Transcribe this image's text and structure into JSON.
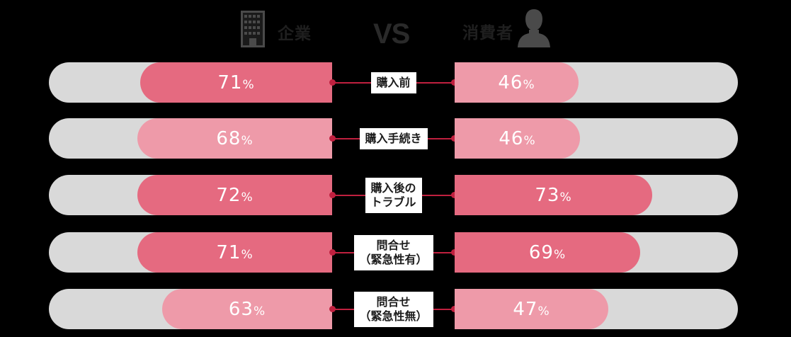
{
  "header": {
    "left_label": "企業",
    "left_icon": "building-icon",
    "vs_label": "VS",
    "right_label": "消費者",
    "right_icon": "person-icon"
  },
  "colors": {
    "strong": "#e56a80",
    "light": "#ee9aa9",
    "track": "#d9d9d9",
    "connector": "#c0203f"
  },
  "rows": [
    {
      "label": "購入前",
      "company": 71,
      "consumer": 46,
      "company_text": "71",
      "consumer_text": "46",
      "company_tone": "strong",
      "consumer_tone": "light",
      "company_fill": 271,
      "consumer_fill": 175
    },
    {
      "label": "購入手続き",
      "company": 68,
      "consumer": 46,
      "company_text": "68",
      "consumer_text": "46",
      "company_tone": "light",
      "consumer_tone": "light",
      "company_fill": 275,
      "consumer_fill": 177
    },
    {
      "label": "購入後の\nトラブル",
      "company": 72,
      "consumer": 73,
      "company_text": "72",
      "consumer_text": "73",
      "company_tone": "strong",
      "consumer_tone": "strong",
      "company_fill": 275,
      "consumer_fill": 279
    },
    {
      "label": "問合せ\n（緊急性有）",
      "company": 71,
      "consumer": 69,
      "company_text": "71",
      "consumer_text": "69",
      "company_tone": "strong",
      "consumer_tone": "strong",
      "company_fill": 275,
      "consumer_fill": 262
    },
    {
      "label": "問合せ\n（緊急性無）",
      "company": 63,
      "consumer": 47,
      "company_text": "63",
      "consumer_text": "47",
      "company_tone": "light",
      "consumer_tone": "light",
      "company_fill": 240,
      "consumer_fill": 217
    }
  ],
  "percent_symbol": "%",
  "chart_data": {
    "type": "bar",
    "title": "企業 VS 消費者",
    "orientation": "horizontal-diverging",
    "categories": [
      "購入前",
      "購入手続き",
      "購入後のトラブル",
      "問合せ（緊急性有）",
      "問合せ（緊急性無）"
    ],
    "series": [
      {
        "name": "企業",
        "values": [
          71,
          68,
          72,
          71,
          63
        ]
      },
      {
        "name": "消費者",
        "values": [
          46,
          46,
          73,
          69,
          47
        ]
      }
    ],
    "unit": "%",
    "xlabel": "",
    "ylabel": "",
    "legend": [
      "企業",
      "消費者"
    ],
    "legend_position": "top"
  }
}
